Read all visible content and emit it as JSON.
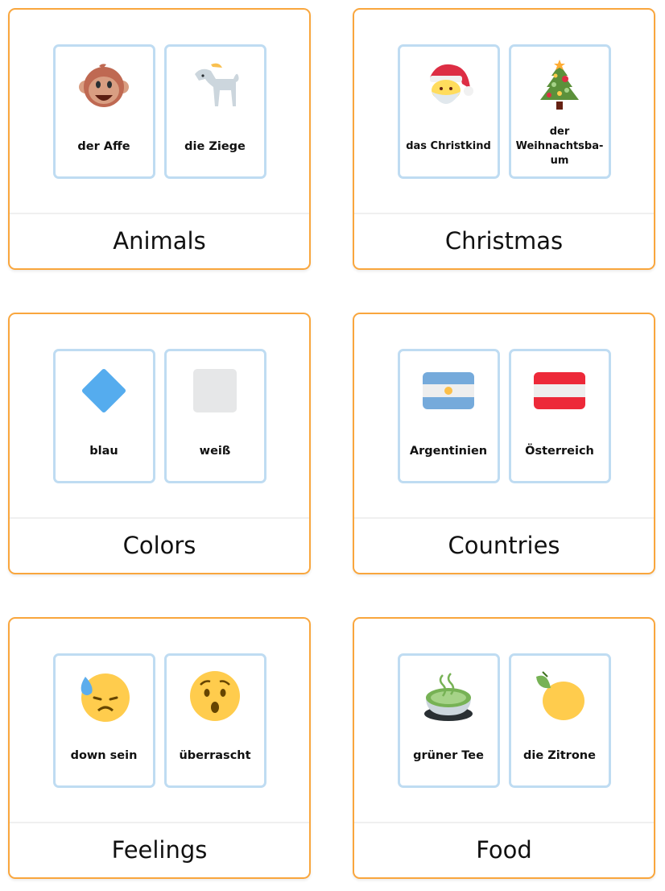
{
  "colors": {
    "card_border": "#f9a63d",
    "tile_border": "#bfdcf2"
  },
  "categories": [
    {
      "title": "Animals",
      "tiles": [
        {
          "word": "der Affe",
          "icon": "monkey-face-icon"
        },
        {
          "word": "die Ziege",
          "icon": "goat-icon"
        }
      ]
    },
    {
      "title": "Christmas",
      "tiles": [
        {
          "word": "das Christkind",
          "icon": "santa-icon"
        },
        {
          "word": "der Weihnachtsba-um",
          "icon": "christmas-tree-icon"
        }
      ]
    },
    {
      "title": "Colors",
      "tiles": [
        {
          "word": "blau",
          "icon": "blue-diamond-icon"
        },
        {
          "word": "weiß",
          "icon": "white-square-icon"
        }
      ]
    },
    {
      "title": "Countries",
      "tiles": [
        {
          "word": "Argentinien",
          "icon": "argentina-flag-icon"
        },
        {
          "word": "Österreich",
          "icon": "austria-flag-icon"
        }
      ]
    },
    {
      "title": "Feelings",
      "tiles": [
        {
          "word": "down sein",
          "icon": "sweat-face-icon"
        },
        {
          "word": "überrascht",
          "icon": "hushed-face-icon"
        }
      ]
    },
    {
      "title": "Food",
      "tiles": [
        {
          "word": "grüner Tee",
          "icon": "green-tea-icon"
        },
        {
          "word": "die Zitrone",
          "icon": "lemon-icon"
        }
      ]
    }
  ]
}
